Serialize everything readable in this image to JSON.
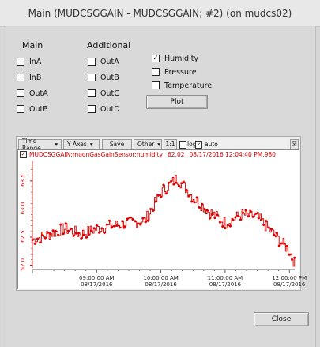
{
  "window": {
    "title": "Main (MUDCSGGAIN - MUDCSGGAIN; #2) (on mudcs02)"
  },
  "headers": {
    "main": "Main",
    "additional": "Additional"
  },
  "main_checks": [
    {
      "label": "InA",
      "checked": false
    },
    {
      "label": "InB",
      "checked": false
    },
    {
      "label": "OutA",
      "checked": false
    },
    {
      "label": "OutB",
      "checked": false
    }
  ],
  "additional_checks": [
    {
      "label": "OutA",
      "checked": false
    },
    {
      "label": "OutB",
      "checked": false
    },
    {
      "label": "OutC",
      "checked": false
    },
    {
      "label": "OutD",
      "checked": false
    }
  ],
  "sensor_checks": [
    {
      "label": "Humidity",
      "checked": true
    },
    {
      "label": "Pressure",
      "checked": false
    },
    {
      "label": "Temperature",
      "checked": false
    }
  ],
  "buttons": {
    "plot": "Plot",
    "close": "Close"
  },
  "toolbar": {
    "time_range": "Time Range",
    "y_axes": "Y Axes",
    "save": "Save",
    "other": "Other",
    "ratio": "1:1",
    "log": "log",
    "auto": "auto",
    "log_checked": false,
    "auto_checked": true,
    "collapse_icon": "collapse-icon"
  },
  "chart_data": {
    "type": "line",
    "legend": {
      "series": "MUDCSGGAIN:muonGasGainSensor:humidity",
      "value": "62.02",
      "timestamp": "08/17/2016 12:04:40 PM.980"
    },
    "color": "#dd0000",
    "yticks": [
      "62.0",
      "62.5",
      "63.0",
      "63.5"
    ],
    "ylim": [
      61.95,
      63.85
    ],
    "xticks": [
      {
        "time": "09:00:00 AM",
        "date": "08/17/2016"
      },
      {
        "time": "10:00:00 AM",
        "date": "08/17/2016"
      },
      {
        "time": "11:00:00 AM",
        "date": "08/17/2016"
      },
      {
        "time": "12:00:00 PM",
        "date": "08/17/2016"
      }
    ],
    "xlim": [
      "08:00 AM",
      "12:05 PM"
    ],
    "series": [
      {
        "name": "MUDCSGGAIN:muonGasGainSensor:humidity",
        "x": [
          "08:00",
          "08:15",
          "08:30",
          "08:45",
          "09:00",
          "09:15",
          "09:30",
          "09:45",
          "10:00",
          "10:15",
          "10:30",
          "10:45",
          "11:00",
          "11:15",
          "11:30",
          "11:45",
          "12:00",
          "12:05"
        ],
        "values": [
          62.45,
          62.55,
          62.65,
          62.55,
          62.65,
          62.7,
          62.75,
          62.8,
          63.3,
          63.55,
          63.2,
          62.95,
          62.75,
          62.9,
          62.85,
          62.55,
          62.25,
          62.02
        ]
      }
    ]
  }
}
